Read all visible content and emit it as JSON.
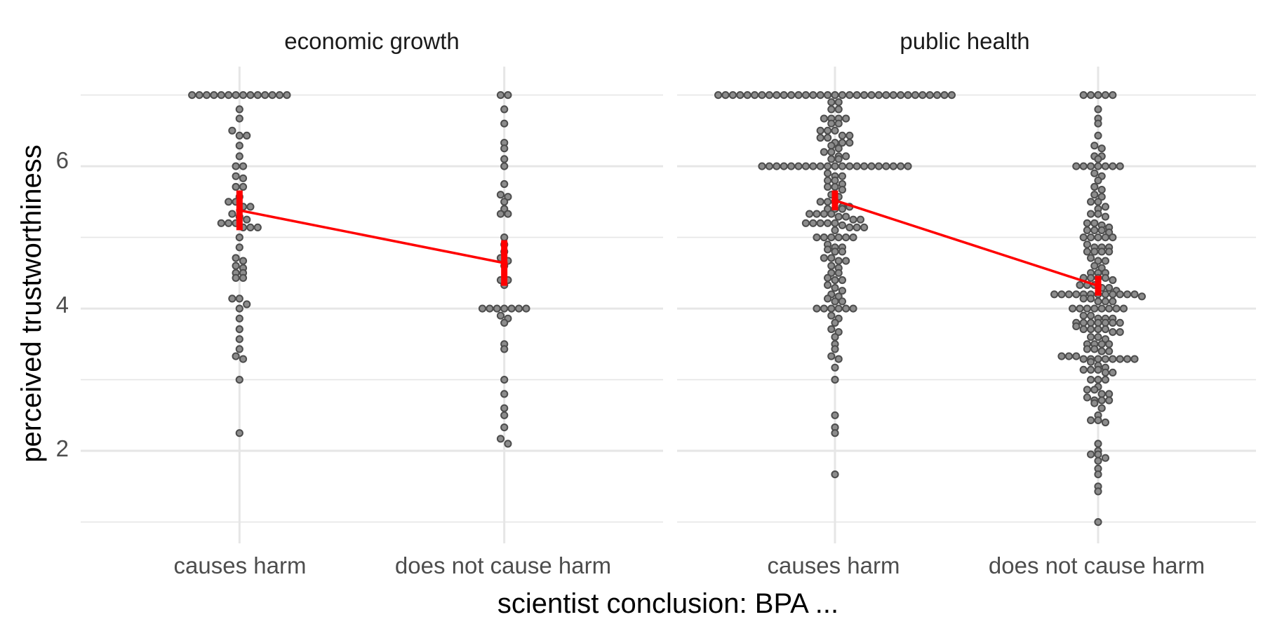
{
  "chart_data": {
    "type": "dotplot",
    "title": "",
    "xlabel": "scientist conclusion: BPA ...",
    "ylabel": "perceived trustworthiness",
    "categories": [
      "causes harm",
      "does not cause harm"
    ],
    "ylim": [
      0.7,
      7.4
    ],
    "y_ticks": [
      "2",
      "4",
      "6"
    ],
    "y_tick_values": [
      2,
      4,
      6
    ],
    "grid": "on",
    "colors": {
      "dots": "#4d4d4d",
      "dot_fill": "#8c8c8c",
      "summary": "#ff0000",
      "grid": "#e6e6e6"
    },
    "panels": [
      {
        "title": "economic growth",
        "series": [
          {
            "category": "causes harm",
            "values": [
              7,
              7,
              7,
              7,
              7,
              7,
              7,
              7,
              7,
              7,
              7,
              7,
              7,
              7,
              6.8,
              6.67,
              6.5,
              6.43,
              6.43,
              6.29,
              6.14,
              6,
              6,
              5.86,
              5.83,
              5.71,
              5.71,
              5.57,
              5.5,
              5.5,
              5.43,
              5.43,
              5.33,
              5.29,
              5.25,
              5.2,
              5.2,
              5.2,
              5.14,
              5.14,
              5.14,
              5,
              4.86,
              4.71,
              4.67,
              4.6,
              4.57,
              4.5,
              4.5,
              4.43,
              4.43,
              4.14,
              4.14,
              4.06,
              4,
              3.86,
              3.71,
              3.57,
              3.43,
              3.33,
              3.29,
              3,
              2.25
            ]
          },
          {
            "category": "does not cause harm",
            "values": [
              7,
              7,
              6.8,
              6.6,
              6.33,
              6.25,
              6.1,
              6,
              5.75,
              5.6,
              5.57,
              5.5,
              5.4,
              5.33,
              5.33,
              5,
              4.9,
              4.8,
              4.71,
              4.67,
              4.6,
              4.4,
              4.4,
              4.33,
              4,
              4,
              4,
              4,
              4,
              4,
              4,
              3.9,
              3.86,
              3.8,
              3.5,
              3.43,
              3,
              2.8,
              2.6,
              2.5,
              2.33,
              2.17,
              2.1
            ]
          }
        ],
        "mean": [
          5.38,
          4.64
        ],
        "ci": [
          [
            5.1,
            5.66
          ],
          [
            4.32,
            4.96
          ]
        ]
      },
      {
        "title": "public health",
        "series": [
          {
            "category": "causes harm",
            "values": [
              7,
              7,
              7,
              7,
              7,
              7,
              7,
              7,
              7,
              7,
              7,
              7,
              7,
              7,
              7,
              7,
              7,
              7,
              7,
              7,
              7,
              7,
              7,
              7,
              7,
              7,
              7,
              7,
              7,
              7,
              7,
              7,
              7,
              6.9,
              6.9,
              6.8,
              6.8,
              6.67,
              6.67,
              6.67,
              6.67,
              6.6,
              6.6,
              6.5,
              6.5,
              6.5,
              6.43,
              6.43,
              6.4,
              6.4,
              6.33,
              6.33,
              6.33,
              6.29,
              6.25,
              6.2,
              6.2,
              6.14,
              6.14,
              6.1,
              6.1,
              6,
              6,
              6,
              6,
              6,
              6,
              6,
              6,
              6,
              6,
              6,
              6,
              6,
              6,
              6,
              6,
              6,
              6,
              6,
              6,
              6,
              5.9,
              5.86,
              5.86,
              5.8,
              5.8,
              5.75,
              5.71,
              5.71,
              5.67,
              5.6,
              5.57,
              5.5,
              5.5,
              5.5,
              5.43,
              5.43,
              5.4,
              5.4,
              5.4,
              5.33,
              5.33,
              5.33,
              5.33,
              5.29,
              5.29,
              5.25,
              5.25,
              5.2,
              5.2,
              5.2,
              5.2,
              5.2,
              5.17,
              5.14,
              5.14,
              5.14,
              5.1,
              5,
              5,
              5,
              5,
              5,
              5,
              4.9,
              4.86,
              4.86,
              4.83,
              4.8,
              4.8,
              4.71,
              4.71,
              4.67,
              4.67,
              4.6,
              4.57,
              4.5,
              4.5,
              4.43,
              4.4,
              4.4,
              4.33,
              4.29,
              4.25,
              4.2,
              4.17,
              4.14,
              4.1,
              4.1,
              4,
              4,
              4,
              4,
              4,
              4,
              3.9,
              3.86,
              3.8,
              3.71,
              3.67,
              3.6,
              3.5,
              3.43,
              3.33,
              3.29,
              3.17,
              3,
              2.5,
              2.33,
              2.25,
              1.67
            ]
          },
          {
            "category": "does not cause harm",
            "values": [
              7,
              7,
              7,
              7,
              7,
              6.8,
              6.67,
              6.6,
              6.43,
              6.29,
              6.25,
              6.14,
              6.14,
              6.1,
              6,
              6,
              6,
              6,
              6,
              6,
              6,
              5.9,
              5.86,
              5.8,
              5.71,
              5.67,
              5.6,
              5.57,
              5.5,
              5.5,
              5.43,
              5.4,
              5.33,
              5.33,
              5.29,
              5.2,
              5.2,
              5.17,
              5.14,
              5.1,
              5.1,
              5.1,
              5.07,
              5,
              5,
              5,
              5,
              5,
              4.9,
              4.86,
              4.86,
              4.86,
              4.8,
              4.8,
              4.8,
              4.8,
              4.71,
              4.67,
              4.67,
              4.6,
              4.57,
              4.5,
              4.5,
              4.5,
              4.43,
              4.43,
              4.43,
              4.43,
              4.4,
              4.33,
              4.33,
              4.33,
              4.29,
              4.29,
              4.25,
              4.2,
              4.2,
              4.2,
              4.2,
              4.2,
              4.2,
              4.2,
              4.2,
              4.2,
              4.2,
              4.2,
              4.2,
              4.17,
              4.14,
              4.14,
              4.1,
              4.1,
              4.1,
              4,
              4,
              4,
              4,
              4,
              4,
              4,
              4,
              3.9,
              3.9,
              3.86,
              3.86,
              3.86,
              3.8,
              3.8,
              3.8,
              3.8,
              3.8,
              3.8,
              3.8,
              3.75,
              3.71,
              3.71,
              3.71,
              3.71,
              3.67,
              3.67,
              3.6,
              3.6,
              3.57,
              3.5,
              3.5,
              3.5,
              3.5,
              3.43,
              3.43,
              3.4,
              3.4,
              3.33,
              3.33,
              3.33,
              3.29,
              3.29,
              3.29,
              3.29,
              3.29,
              3.29,
              3.29,
              3.29,
              3.25,
              3.2,
              3.17,
              3.14,
              3.14,
              3.14,
              3.1,
              3.1,
              3,
              3,
              3,
              2.9,
              2.86,
              2.86,
              2.8,
              2.8,
              2.75,
              2.71,
              2.71,
              2.71,
              2.67,
              2.6,
              2.5,
              2.43,
              2.43,
              2.4,
              2.1,
              2,
              1.95,
              1.95,
              1.9,
              1.86,
              1.75,
              1.67,
              1.5,
              1.43,
              1
            ]
          }
        ],
        "mean": [
          5.52,
          4.32
        ],
        "ci": [
          [
            5.38,
            5.66
          ],
          [
            4.18,
            4.46
          ]
        ]
      }
    ]
  }
}
